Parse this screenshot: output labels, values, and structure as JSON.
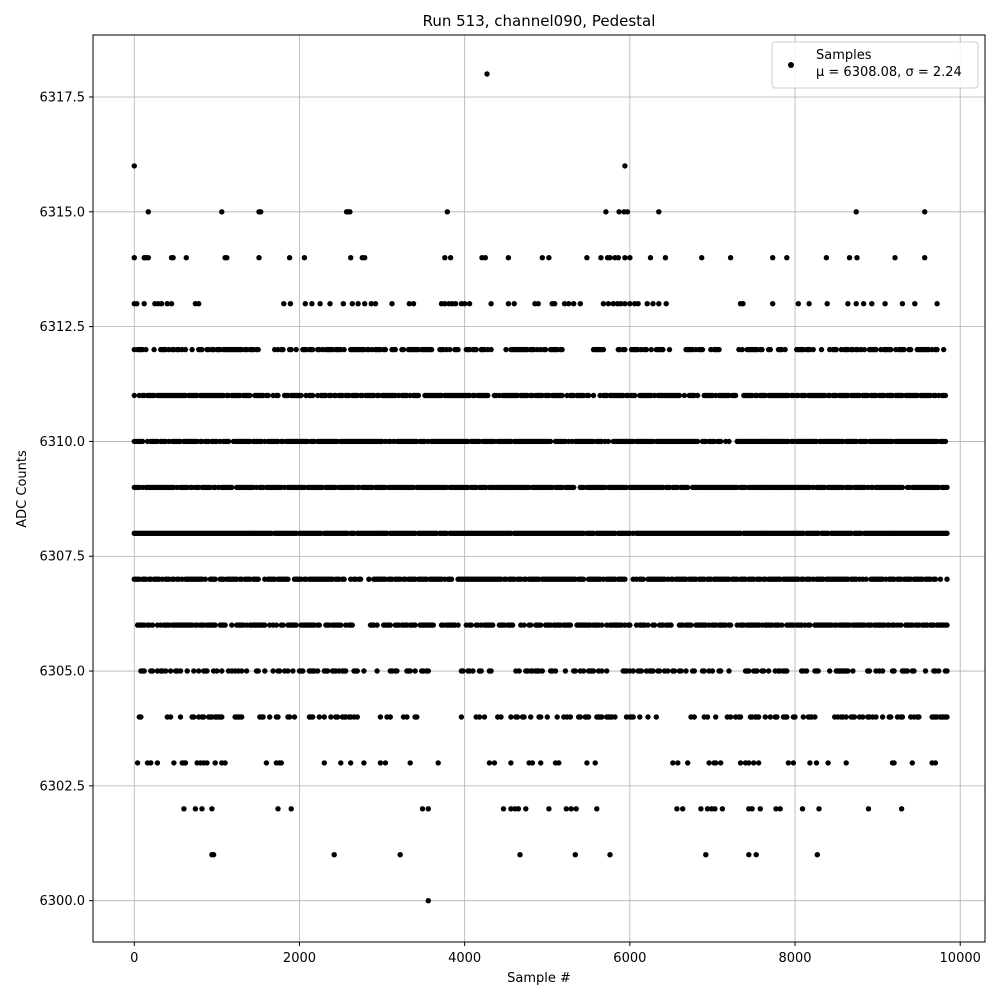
{
  "chart_data": {
    "type": "scatter",
    "title": "Run 513, channel090, Pedestal",
    "xlabel": "Sample #",
    "ylabel": "ADC Counts",
    "xlim": [
      -500,
      10300
    ],
    "ylim": [
      6299.1,
      6318.85
    ],
    "grid": true,
    "legend_position": "top-right",
    "x_ticks": [
      0,
      2000,
      4000,
      6000,
      8000,
      10000
    ],
    "y_ticks": [
      6300.0,
      6302.5,
      6305.0,
      6307.5,
      6310.0,
      6312.5,
      6315.0,
      6317.5
    ],
    "y_tick_labels": [
      "6300.0",
      "6302.5",
      "6305.0",
      "6307.5",
      "6310.0",
      "6312.5",
      "6315.0",
      "6317.5"
    ],
    "marker_color": "#000000",
    "series": [
      {
        "name": "Samples",
        "stats_label": "μ = 6308.08, σ = 2.24",
        "x_start": 0,
        "x_end": 9840,
        "count": 9841,
        "mean": 6308.08,
        "std": 2.24,
        "levels": [
          {
            "y": 6301,
            "x": [
              940,
              960,
              2420,
              3220,
              4670,
              5340,
              5760,
              6920,
              7440,
              7530,
              8270
            ]
          },
          {
            "y": 6302,
            "x": [
              600,
              740,
              820,
              940,
              1740,
              1900,
              3490,
              3560,
              4470,
              4560,
              4610,
              4650,
              4740,
              5020,
              5230,
              5290,
              5350,
              5600,
              6570,
              6640,
              6860,
              6940,
              6990,
              7030,
              7120,
              7440,
              7480,
              7580,
              7770,
              7820,
              8090,
              8290,
              8890,
              9290
            ]
          },
          {
            "y": 6300,
            "x": [
              3560
            ]
          },
          {
            "y": 6318,
            "x": [
              4270
            ]
          },
          {
            "y": 6316,
            "x": [
              0,
              5940
            ]
          },
          {
            "y": 6315,
            "x": [
              170,
              1060,
              1510,
              1530,
              2570,
              2590,
              2610,
              3790,
              5710,
              5870,
              5930,
              5970,
              6350,
              8740,
              9570
            ]
          },
          {
            "y": 6314,
            "x": [
              0,
              120,
              140,
              170,
              450,
              470,
              630,
              1100,
              1120,
              1510,
              1880,
              2060,
              2620,
              2760,
              2790,
              3760,
              3830,
              4210,
              4250,
              4530,
              4940,
              5020,
              5480,
              5650,
              5730,
              5760,
              5820,
              5860,
              5940,
              6000,
              6250,
              6430,
              6870,
              7220,
              7730,
              7900,
              8380,
              8660,
              8750,
              9210,
              9570
            ]
          },
          {
            "y": 6313,
            "x": [
              0,
              30,
              120,
              250,
              290,
              330,
              400,
              450,
              740,
              780,
              1810,
              1890,
              2070,
              2150,
              2250,
              2370,
              2530,
              2640,
              2710,
              2790,
              2870,
              2920,
              3120,
              3330,
              3380,
              3720,
              3760,
              3810,
              3850,
              3890,
              3960,
              4000,
              4060,
              4320,
              4530,
              4600,
              4850,
              4890,
              5060,
              5090,
              5210,
              5260,
              5320,
              5400,
              5680,
              5740,
              5800,
              5850,
              5890,
              5940,
              6000,
              6060,
              6100,
              6210,
              6280,
              6350,
              6440,
              7340,
              7370,
              7730,
              8040,
              8170,
              8390,
              8640,
              8740,
              8830,
              8930,
              9090,
              9300,
              9450,
              9720
            ]
          }
        ],
        "dense_levels": [
          {
            "y": 6303,
            "density": 0.18,
            "gaps": [
              [
                1300,
                1480
              ],
              [
                1990,
                2250
              ],
              [
                3350,
                3600
              ],
              [
                3700,
                4050
              ],
              [
                5700,
                5950
              ],
              [
                6120,
                6450
              ],
              [
                7700,
                7900
              ],
              [
                8750,
                9100
              ]
            ]
          },
          {
            "y": 6304,
            "density": 0.35,
            "gaps": [
              [
                0,
                40
              ],
              [
                120,
                250
              ],
              [
                1350,
                1500
              ],
              [
                2800,
                2950
              ],
              [
                3500,
                3950
              ],
              [
                5850,
                5950
              ],
              [
                6400,
                6550
              ]
            ]
          },
          {
            "y": 6305,
            "density": 0.45,
            "gaps": [
              [
                0,
                20
              ],
              [
                2800,
                2900
              ],
              [
                3620,
                3950
              ],
              [
                5750,
                5850
              ]
            ]
          },
          {
            "y": 6306,
            "density": 0.7,
            "gaps": [
              [
                0,
                30
              ],
              [
                2670,
                2840
              ],
              [
                3650,
                3700
              ]
            ]
          },
          {
            "y": 6307,
            "density": 0.8,
            "gaps": [
              [
                2750,
                2830
              ],
              [
                5950,
                6020
              ]
            ]
          },
          {
            "y": 6308,
            "density": 0.95,
            "gaps": []
          },
          {
            "y": 6309,
            "density": 0.9,
            "gaps": []
          },
          {
            "y": 6310,
            "density": 0.85,
            "gaps": []
          },
          {
            "y": 6311,
            "density": 0.75,
            "gaps": []
          },
          {
            "y": 6312,
            "density": 0.6,
            "gaps": [
              [
                1520,
                1620
              ],
              [
                3630,
                3660
              ],
              [
                4350,
                4450
              ],
              [
                5200,
                5550
              ],
              [
                6500,
                6650
              ],
              [
                7100,
                7300
              ],
              [
                7900,
                8000
              ]
            ]
          }
        ]
      }
    ]
  }
}
